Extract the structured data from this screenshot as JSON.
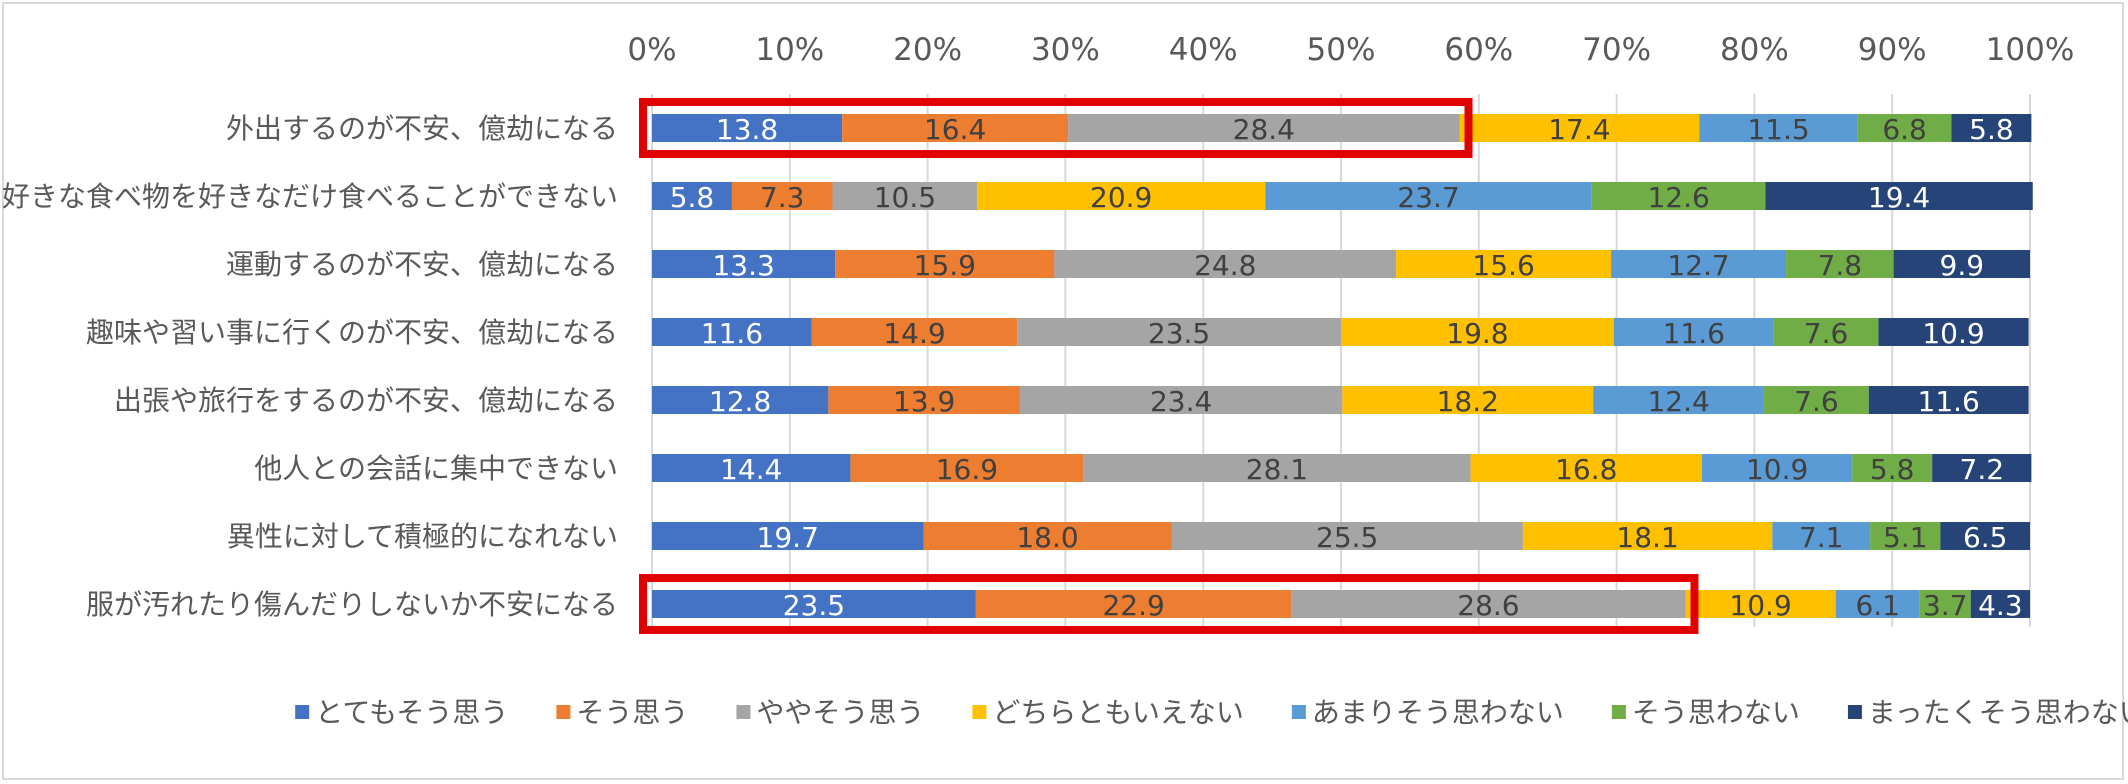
{
  "chart_data": {
    "type": "bar",
    "orientation": "horizontal",
    "stacked": true,
    "percent_stacked": true,
    "xlim": [
      0,
      100
    ],
    "x_ticks": [
      "0%",
      "10%",
      "20%",
      "30%",
      "40%",
      "50%",
      "60%",
      "70%",
      "80%",
      "90%",
      "100%"
    ],
    "grid": true,
    "legend_position": "bottom",
    "categories": [
      "外出するのが不安、億劫になる",
      "好きな食べ物を好きなだけ食べることができない",
      "運動するのが不安、億劫になる",
      "趣味や習い事に行くのが不安、億劫になる",
      "出張や旅行をするのが不安、億劫になる",
      "他人との会話に集中できない",
      "異性に対して積極的になれない",
      "服が汚れたり傷んだりしないか不安になる"
    ],
    "series": [
      {
        "name": "とてもそう思う",
        "color": "#4472c4",
        "label_color": "#ffffff",
        "values": [
          13.8,
          5.8,
          13.3,
          11.6,
          12.8,
          14.4,
          19.7,
          23.5
        ],
        "labels": [
          "13.8",
          "5.8",
          "13.3",
          "11.6",
          "12.8",
          "14.4",
          "19.7",
          "23.5"
        ]
      },
      {
        "name": "そう思う",
        "color": "#ed7d31",
        "label_color": "#404040",
        "values": [
          16.4,
          7.3,
          15.9,
          14.9,
          13.9,
          16.9,
          18.0,
          22.9
        ],
        "labels": [
          "16.4",
          "7.3",
          "15.9",
          "14.9",
          "13.9",
          "16.9",
          "18.0",
          "22.9"
        ]
      },
      {
        "name": "ややそう思う",
        "color": "#a5a5a5",
        "label_color": "#404040",
        "values": [
          28.4,
          10.5,
          24.8,
          23.5,
          23.4,
          28.1,
          25.5,
          28.6
        ],
        "labels": [
          "28.4",
          "10.5",
          "24.8",
          "23.5",
          "23.4",
          "28.1",
          "25.5",
          "28.6"
        ]
      },
      {
        "name": "どちらともいえない",
        "color": "#ffc000",
        "label_color": "#404040",
        "values": [
          17.4,
          20.9,
          15.6,
          19.8,
          18.2,
          16.8,
          18.1,
          10.9
        ],
        "labels": [
          "17.4",
          "20.9",
          "15.6",
          "19.8",
          "18.2",
          "16.8",
          "18.1",
          "10.9"
        ]
      },
      {
        "name": "あまりそう思わない",
        "color": "#5b9bd5",
        "label_color": "#404040",
        "values": [
          11.5,
          23.7,
          12.7,
          11.6,
          12.4,
          10.9,
          7.1,
          6.1
        ],
        "labels": [
          "11.5",
          "23.7",
          "12.7",
          "11.6",
          "12.4",
          "10.9",
          "7.1",
          "6.1"
        ]
      },
      {
        "name": "そう思わない",
        "color": "#70ad47",
        "label_color": "#404040",
        "values": [
          6.8,
          12.6,
          7.8,
          7.6,
          7.6,
          5.8,
          5.1,
          3.7
        ],
        "labels": [
          "6.8",
          "12.6",
          "7.8",
          "7.6",
          "7.6",
          "5.8",
          "5.1",
          "3.7"
        ]
      },
      {
        "name": "まったくそう思わない",
        "color": "#264478",
        "label_color": "#ffffff",
        "values": [
          5.8,
          19.4,
          9.9,
          10.9,
          11.6,
          7.2,
          6.5,
          4.3
        ],
        "labels": [
          "5.8",
          "19.4",
          "9.9",
          "10.9",
          "11.6",
          "7.2",
          "6.5",
          "4.3"
        ]
      }
    ],
    "annotations": [
      {
        "type": "highlight-box",
        "category_index": 0,
        "series_span": [
          0,
          2
        ],
        "color": "#e00000"
      },
      {
        "type": "highlight-box",
        "category_index": 7,
        "series_span": [
          0,
          2
        ],
        "color": "#e00000"
      }
    ],
    "colors": {
      "grid": "#d9d9d9",
      "axis_text": "#595959",
      "label_text": "#404040"
    }
  }
}
